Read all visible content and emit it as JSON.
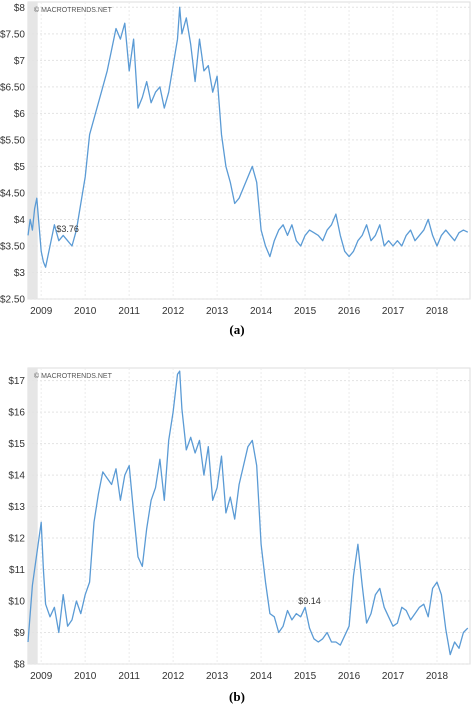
{
  "chart_data": [
    {
      "type": "line",
      "caption": "(a)",
      "watermark": "© MACROTRENDS.NET",
      "annotation": {
        "label": "$3.76",
        "x": 2009.6,
        "y": 3.76
      },
      "ylim": [
        2.5,
        8.1
      ],
      "xlim": [
        2008.7,
        2018.75
      ],
      "yticks": [
        {
          "value": 8,
          "label": "$8"
        },
        {
          "value": 7.5,
          "label": "$7.50"
        },
        {
          "value": 7,
          "label": "$7"
        },
        {
          "value": 6.5,
          "label": "$6.50"
        },
        {
          "value": 6,
          "label": "$6"
        },
        {
          "value": 5.5,
          "label": "$5.50"
        },
        {
          "value": 5,
          "label": "$5"
        },
        {
          "value": 4.5,
          "label": "$4.50"
        },
        {
          "value": 4,
          "label": "$4"
        },
        {
          "value": 3.5,
          "label": "$3.50"
        },
        {
          "value": 3,
          "label": "$3"
        },
        {
          "value": 2.5,
          "label": "$2.50"
        }
      ],
      "xticks": [
        {
          "value": 2009,
          "label": "2009"
        },
        {
          "value": 2010,
          "label": "2010"
        },
        {
          "value": 2011,
          "label": "2011"
        },
        {
          "value": 2012,
          "label": "2012"
        },
        {
          "value": 2013,
          "label": "2013"
        },
        {
          "value": 2014,
          "label": "2014"
        },
        {
          "value": 2015,
          "label": "2015"
        },
        {
          "value": 2016,
          "label": "2016"
        },
        {
          "value": 2017,
          "label": "2017"
        },
        {
          "value": 2018,
          "label": "2018"
        }
      ],
      "line_color": "#5b9bd5",
      "shade_color": "#e6e6e6",
      "shade_x": [
        2008.7,
        2008.92
      ],
      "series": [
        {
          "x": [
            2008.7,
            2008.75,
            2008.8,
            2008.85,
            2008.9,
            2008.95,
            2009.0,
            2009.05,
            2009.1,
            2009.15,
            2009.2,
            2009.3,
            2009.4,
            2009.5,
            2009.6,
            2009.7,
            2009.8,
            2009.9,
            2010.0,
            2010.1,
            2010.2,
            2010.3,
            2010.4,
            2010.5,
            2010.6,
            2010.7,
            2010.8,
            2010.9,
            2011.0,
            2011.1,
            2011.2,
            2011.3,
            2011.4,
            2011.5,
            2011.6,
            2011.7,
            2011.8,
            2011.9,
            2012.0,
            2012.1,
            2012.15,
            2012.2,
            2012.3,
            2012.4,
            2012.5,
            2012.6,
            2012.7,
            2012.8,
            2012.9,
            2013.0,
            2013.1,
            2013.2,
            2013.3,
            2013.4,
            2013.5,
            2013.6,
            2013.7,
            2013.8,
            2013.9,
            2014.0,
            2014.1,
            2014.2,
            2014.3,
            2014.4,
            2014.5,
            2014.6,
            2014.7,
            2014.8,
            2014.9,
            2015.0,
            2015.1,
            2015.2,
            2015.3,
            2015.4,
            2015.5,
            2015.6,
            2015.7,
            2015.8,
            2015.9,
            2016.0,
            2016.1,
            2016.2,
            2016.3,
            2016.4,
            2016.5,
            2016.6,
            2016.7,
            2016.8,
            2016.9,
            2017.0,
            2017.1,
            2017.2,
            2017.3,
            2017.4,
            2017.5,
            2017.6,
            2017.7,
            2017.8,
            2017.9,
            2018.0,
            2018.1,
            2018.2,
            2018.3,
            2018.4,
            2018.5,
            2018.6,
            2018.7
          ],
          "y": [
            3.7,
            4.0,
            3.8,
            4.2,
            4.4,
            3.9,
            3.4,
            3.2,
            3.1,
            3.3,
            3.5,
            3.9,
            3.6,
            3.7,
            3.6,
            3.5,
            3.8,
            4.3,
            4.8,
            5.6,
            5.9,
            6.2,
            6.5,
            6.8,
            7.2,
            7.6,
            7.4,
            7.7,
            6.8,
            7.4,
            6.1,
            6.3,
            6.6,
            6.2,
            6.4,
            6.5,
            6.1,
            6.4,
            6.9,
            7.4,
            8.0,
            7.5,
            7.8,
            7.3,
            6.6,
            7.4,
            6.8,
            6.9,
            6.4,
            6.7,
            5.6,
            5.0,
            4.7,
            4.3,
            4.4,
            4.6,
            4.8,
            5.0,
            4.7,
            3.8,
            3.5,
            3.3,
            3.6,
            3.8,
            3.9,
            3.7,
            3.9,
            3.6,
            3.5,
            3.7,
            3.8,
            3.75,
            3.7,
            3.6,
            3.8,
            3.9,
            4.1,
            3.7,
            3.4,
            3.3,
            3.4,
            3.6,
            3.7,
            3.9,
            3.6,
            3.7,
            3.9,
            3.5,
            3.6,
            3.5,
            3.6,
            3.5,
            3.7,
            3.8,
            3.6,
            3.7,
            3.8,
            4.0,
            3.7,
            3.5,
            3.7,
            3.8,
            3.7,
            3.6,
            3.75,
            3.8,
            3.76
          ]
        }
      ]
    },
    {
      "type": "line",
      "caption": "(b)",
      "watermark": "© MACROTRENDS.NET",
      "annotation": {
        "label": "$9.14",
        "x": 2015.1,
        "y": 9.9
      },
      "ylim": [
        8,
        17.4
      ],
      "xlim": [
        2008.7,
        2018.75
      ],
      "yticks": [
        {
          "value": 17,
          "label": "$17"
        },
        {
          "value": 16,
          "label": "$16"
        },
        {
          "value": 15,
          "label": "$15"
        },
        {
          "value": 14,
          "label": "$14"
        },
        {
          "value": 13,
          "label": "$13"
        },
        {
          "value": 12,
          "label": "$12"
        },
        {
          "value": 11,
          "label": "$11"
        },
        {
          "value": 10,
          "label": "$10"
        },
        {
          "value": 9,
          "label": "$9"
        },
        {
          "value": 8,
          "label": "$8"
        }
      ],
      "xticks": [
        {
          "value": 2009,
          "label": "2009"
        },
        {
          "value": 2010,
          "label": "2010"
        },
        {
          "value": 2011,
          "label": "2011"
        },
        {
          "value": 2012,
          "label": "2012"
        },
        {
          "value": 2013,
          "label": "2013"
        },
        {
          "value": 2014,
          "label": "2014"
        },
        {
          "value": 2015,
          "label": "2015"
        },
        {
          "value": 2016,
          "label": "2016"
        },
        {
          "value": 2017,
          "label": "2017"
        },
        {
          "value": 2018,
          "label": "2018"
        }
      ],
      "line_color": "#5b9bd5",
      "shade_color": "#e6e6e6",
      "shade_x": [
        2008.7,
        2008.92
      ],
      "series": [
        {
          "x": [
            2008.7,
            2008.8,
            2008.9,
            2009.0,
            2009.05,
            2009.1,
            2009.2,
            2009.3,
            2009.4,
            2009.5,
            2009.6,
            2009.7,
            2009.8,
            2009.9,
            2010.0,
            2010.1,
            2010.2,
            2010.3,
            2010.4,
            2010.5,
            2010.6,
            2010.7,
            2010.8,
            2010.9,
            2011.0,
            2011.1,
            2011.2,
            2011.3,
            2011.4,
            2011.5,
            2011.6,
            2011.7,
            2011.8,
            2011.9,
            2012.0,
            2012.1,
            2012.15,
            2012.2,
            2012.3,
            2012.4,
            2012.5,
            2012.6,
            2012.7,
            2012.8,
            2012.9,
            2013.0,
            2013.1,
            2013.2,
            2013.3,
            2013.4,
            2013.5,
            2013.6,
            2013.7,
            2013.8,
            2013.9,
            2014.0,
            2014.1,
            2014.2,
            2014.3,
            2014.4,
            2014.5,
            2014.6,
            2014.7,
            2014.8,
            2014.9,
            2015.0,
            2015.1,
            2015.2,
            2015.3,
            2015.4,
            2015.5,
            2015.6,
            2015.7,
            2015.8,
            2015.9,
            2016.0,
            2016.1,
            2016.2,
            2016.3,
            2016.4,
            2016.5,
            2016.6,
            2016.7,
            2016.8,
            2016.9,
            2017.0,
            2017.1,
            2017.2,
            2017.3,
            2017.4,
            2017.5,
            2017.6,
            2017.7,
            2017.8,
            2017.9,
            2018.0,
            2018.1,
            2018.2,
            2018.3,
            2018.4,
            2018.5,
            2018.6,
            2018.7
          ],
          "y": [
            8.7,
            10.5,
            11.5,
            12.5,
            11.0,
            9.9,
            9.5,
            9.8,
            9.0,
            10.2,
            9.2,
            9.4,
            10.0,
            9.6,
            10.2,
            10.6,
            12.5,
            13.4,
            14.1,
            13.9,
            13.7,
            14.2,
            13.2,
            14.0,
            14.3,
            12.8,
            11.4,
            11.1,
            12.3,
            13.2,
            13.6,
            14.5,
            13.2,
            15.1,
            16.0,
            17.2,
            17.3,
            16.1,
            14.8,
            15.2,
            14.7,
            15.1,
            14.0,
            14.9,
            13.2,
            13.6,
            14.6,
            12.8,
            13.3,
            12.6,
            13.7,
            14.3,
            14.9,
            15.1,
            14.3,
            11.8,
            10.6,
            9.6,
            9.5,
            9.0,
            9.2,
            9.7,
            9.4,
            9.6,
            9.5,
            9.8,
            9.14,
            8.8,
            8.7,
            8.8,
            9.0,
            8.7,
            8.7,
            8.6,
            8.9,
            9.2,
            10.8,
            11.8,
            10.5,
            9.3,
            9.6,
            10.2,
            10.4,
            9.8,
            9.5,
            9.2,
            9.3,
            9.8,
            9.7,
            9.4,
            9.6,
            9.8,
            9.9,
            9.5,
            10.4,
            10.6,
            10.2,
            9.1,
            8.3,
            8.7,
            8.5,
            9.0,
            9.14
          ]
        }
      ]
    }
  ]
}
